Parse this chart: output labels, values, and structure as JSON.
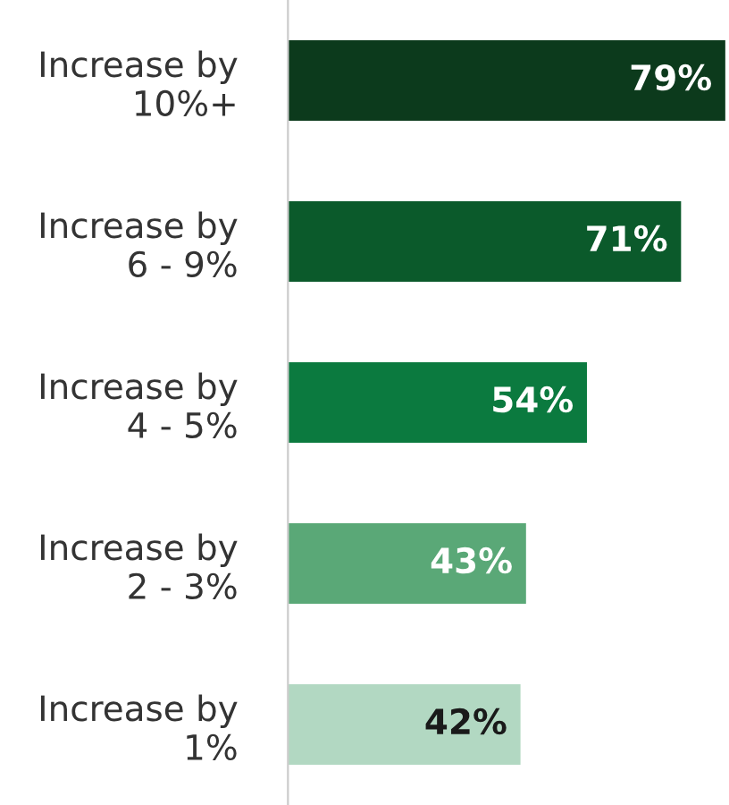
{
  "chart_data": {
    "type": "bar",
    "orientation": "horizontal",
    "categories": [
      "Increase by\n10%+",
      "Increase by\n6 - 9%",
      "Increase by\n4 - 5%",
      "Increase by\n2 - 3%",
      "Increase by\n1%"
    ],
    "values": [
      79,
      71,
      54,
      43,
      42
    ],
    "value_labels": [
      "79%",
      "71%",
      "54%",
      "43%",
      "42%"
    ],
    "colors": [
      "#0c3a1c",
      "#0b5a2b",
      "#0b7a3f",
      "#5aa877",
      "#b2d8c2"
    ],
    "grid": false,
    "legend": false
  }
}
